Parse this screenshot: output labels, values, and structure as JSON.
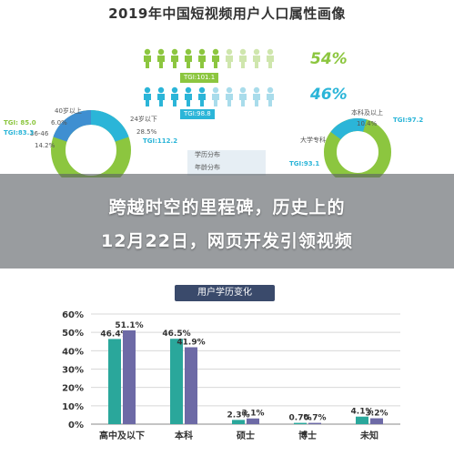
{
  "top_title": "2019年中国短视频用户人口属性画像",
  "gender": {
    "male_pct": "54%",
    "female_pct": "46%",
    "male_tgi": "TGI:101.1",
    "female_tgi": "TGI:98.8"
  },
  "age_labels": {
    "over40": "40岁以上",
    "p35": "6.0%",
    "r3646": "36-46",
    "p142": "14.2%",
    "under24": "24岁以下",
    "p285": "28.5%",
    "tgi1": "TGI: 85.0",
    "tgi2": "TGI:83.3",
    "tgi3": "TGI:112.2"
  },
  "edu_labels": {
    "bachelor": "本科及以上",
    "p104": "10.4%",
    "college": "大学专科",
    "tgi1": "TGI:97.2",
    "tgi2": "TGI:93.1",
    "mid1": "学历分布",
    "mid2": "年龄分布"
  },
  "headline": {
    "line1": "跨越时空的里程碑，历史上的",
    "line2": "12月22日，网页开发引领视频"
  },
  "colors": {
    "male": "#8cc63f",
    "female": "#2bb5d8",
    "bar_a": "#2aa79b",
    "bar_b": "#6d6aa6",
    "donut_a": "#8cc63f",
    "donut_b": "#2bb5d8"
  },
  "chart_data": {
    "type": "bar",
    "title": "用户学历变化",
    "categories": [
      "高中及以下",
      "本科",
      "硕士",
      "博士",
      "未知"
    ],
    "series": [
      {
        "values": [
          46.4,
          46.5,
          2.3,
          0.7,
          4.1
        ]
      },
      {
        "values": [
          51.1,
          41.9,
          3.1,
          0.7,
          3.2
        ]
      }
    ],
    "value_labels": [
      [
        "46.4%",
        "46.5%",
        "2.3%",
        "0.7%",
        "4.1%"
      ],
      [
        "51.1%",
        "41.9%",
        "3.1%",
        "0.7%",
        "3.2%"
      ]
    ],
    "ylim": [
      0,
      60
    ],
    "yticks": [
      "0%",
      "10%",
      "20%",
      "30%",
      "40%",
      "50%",
      "60%"
    ],
    "grid": true
  }
}
